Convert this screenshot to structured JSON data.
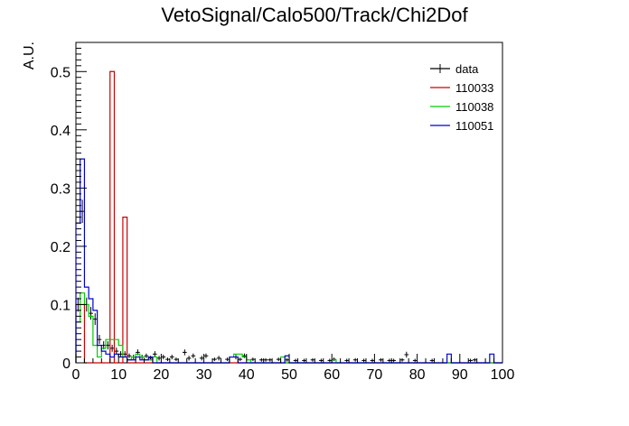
{
  "chart_data": {
    "type": "histogram",
    "title": "VetoSignal/Calo500/Track/Chi2Dof",
    "xlabel": "",
    "ylabel": "A.U.",
    "xlim": [
      0,
      100
    ],
    "ylim": [
      0,
      0.55
    ],
    "bin_width": 1,
    "x_ticks": [
      0,
      10,
      20,
      30,
      40,
      50,
      60,
      70,
      80,
      90,
      100
    ],
    "y_ticks": [
      0,
      0.1,
      0.2,
      0.3,
      0.4,
      0.5
    ],
    "y_tick_labels": [
      "0",
      "0.1",
      "0.2",
      "0.3",
      "0.4",
      "0.5"
    ],
    "grid": false,
    "legend_position": "top-right",
    "series": [
      {
        "name": "data",
        "kind": "errorbar",
        "color": "#000000",
        "points": [
          [
            0.5,
            0.1,
            0.012
          ],
          [
            1.5,
            0.26,
            0.02
          ],
          [
            2.5,
            0.1,
            0.012
          ],
          [
            3.5,
            0.085,
            0.011
          ],
          [
            4.5,
            0.075,
            0.01
          ],
          [
            5.5,
            0.04,
            0.008
          ],
          [
            6.5,
            0.03,
            0.007
          ],
          [
            7.5,
            0.03,
            0.007
          ],
          [
            8.5,
            0.025,
            0.006
          ],
          [
            9.5,
            0.02,
            0.006
          ],
          [
            10.5,
            0.015,
            0.005
          ],
          [
            11.5,
            0.015,
            0.005
          ],
          [
            12.5,
            0.012,
            0.004
          ],
          [
            13.5,
            0.01,
            0.004
          ],
          [
            14.5,
            0.018,
            0.005
          ],
          [
            15.5,
            0.01,
            0.004
          ],
          [
            16.5,
            0.012,
            0.004
          ],
          [
            17.5,
            0.008,
            0.004
          ],
          [
            18.5,
            0.015,
            0.005
          ],
          [
            19.5,
            0.008,
            0.004
          ],
          [
            20.5,
            0.01,
            0.004
          ],
          [
            21.5,
            0.006,
            0.003
          ],
          [
            22.5,
            0.01,
            0.004
          ],
          [
            23.5,
            0.006,
            0.003
          ],
          [
            25.5,
            0.018,
            0.005
          ],
          [
            26.5,
            0.008,
            0.004
          ],
          [
            27.5,
            0.012,
            0.004
          ],
          [
            29.5,
            0.008,
            0.004
          ],
          [
            30.5,
            0.012,
            0.004
          ],
          [
            32.5,
            0.006,
            0.003
          ],
          [
            33.5,
            0.008,
            0.004
          ],
          [
            35.5,
            0.006,
            0.003
          ],
          [
            37.5,
            0.01,
            0.004
          ],
          [
            38.5,
            0.006,
            0.003
          ],
          [
            39.5,
            0.012,
            0.004
          ],
          [
            41.5,
            0.006,
            0.003
          ],
          [
            43.5,
            0.005,
            0.003
          ],
          [
            44.5,
            0.005,
            0.003
          ],
          [
            45.5,
            0.005,
            0.003
          ],
          [
            47.5,
            0.006,
            0.003
          ],
          [
            49.5,
            0.005,
            0.003
          ],
          [
            51.5,
            0.004,
            0.003
          ],
          [
            53.5,
            0.004,
            0.003
          ],
          [
            55.5,
            0.005,
            0.003
          ],
          [
            57.5,
            0.004,
            0.003
          ],
          [
            59.5,
            0.004,
            0.003
          ],
          [
            60.5,
            0.006,
            0.003
          ],
          [
            63.5,
            0.004,
            0.003
          ],
          [
            65.5,
            0.005,
            0.003
          ],
          [
            67.5,
            0.004,
            0.003
          ],
          [
            69.5,
            0.004,
            0.003
          ],
          [
            71.5,
            0.005,
            0.003
          ],
          [
            73.5,
            0.004,
            0.003
          ],
          [
            74.5,
            0.004,
            0.003
          ],
          [
            76.5,
            0.005,
            0.003
          ],
          [
            77.5,
            0.014,
            0.005
          ],
          [
            79.5,
            0.004,
            0.003
          ],
          [
            83.5,
            0.004,
            0.003
          ],
          [
            92.5,
            0.004,
            0.003
          ],
          [
            93.5,
            0.005,
            0.003
          ]
        ]
      },
      {
        "name": "110033",
        "kind": "step",
        "color": "#cc0000",
        "bins": [
          [
            0,
            0.1
          ],
          [
            2,
            0
          ],
          [
            8,
            0.5
          ],
          [
            9,
            0
          ],
          [
            11,
            0.25
          ],
          [
            12,
            0
          ]
        ]
      },
      {
        "name": "110038",
        "kind": "step",
        "color": "#00cc00",
        "bins": [
          [
            0,
            0.07
          ],
          [
            1,
            0.12
          ],
          [
            2,
            0.1
          ],
          [
            3,
            0.08
          ],
          [
            4,
            0.03
          ],
          [
            5,
            0.01
          ],
          [
            6,
            0.025
          ],
          [
            7,
            0.04
          ],
          [
            9,
            0.04
          ],
          [
            10,
            0.03
          ],
          [
            11,
            0.01
          ],
          [
            12,
            0.005
          ],
          [
            13,
            0.01
          ],
          [
            14,
            0.015
          ],
          [
            15,
            0.01
          ],
          [
            16,
            0.005
          ],
          [
            18,
            0.01
          ],
          [
            19,
            0
          ],
          [
            36,
            0.01
          ],
          [
            37,
            0.015
          ],
          [
            39,
            0.01
          ],
          [
            40,
            0.005
          ],
          [
            41,
            0
          ],
          [
            48,
            0.01
          ],
          [
            49,
            0
          ],
          [
            60,
            0.005
          ],
          [
            61,
            0
          ]
        ]
      },
      {
        "name": "110051",
        "kind": "step",
        "color": "#0000cc",
        "bins": [
          [
            0,
            0.24
          ],
          [
            1,
            0.35
          ],
          [
            2,
            0.13
          ],
          [
            3,
            0.11
          ],
          [
            4,
            0.09
          ],
          [
            5,
            0.03
          ],
          [
            6,
            0.02
          ],
          [
            7,
            0.015
          ],
          [
            8,
            0.01
          ],
          [
            9,
            0.015
          ],
          [
            10,
            0.01
          ],
          [
            11,
            0.01
          ],
          [
            12,
            0.005
          ],
          [
            14,
            0.01
          ],
          [
            15,
            0.005
          ],
          [
            17,
            0.01
          ],
          [
            18,
            0
          ],
          [
            36,
            0.01
          ],
          [
            38,
            0
          ],
          [
            49,
            0.012
          ],
          [
            50,
            0
          ],
          [
            87,
            0.015
          ],
          [
            88,
            0
          ],
          [
            97,
            0.015
          ],
          [
            98,
            0
          ]
        ]
      }
    ]
  }
}
